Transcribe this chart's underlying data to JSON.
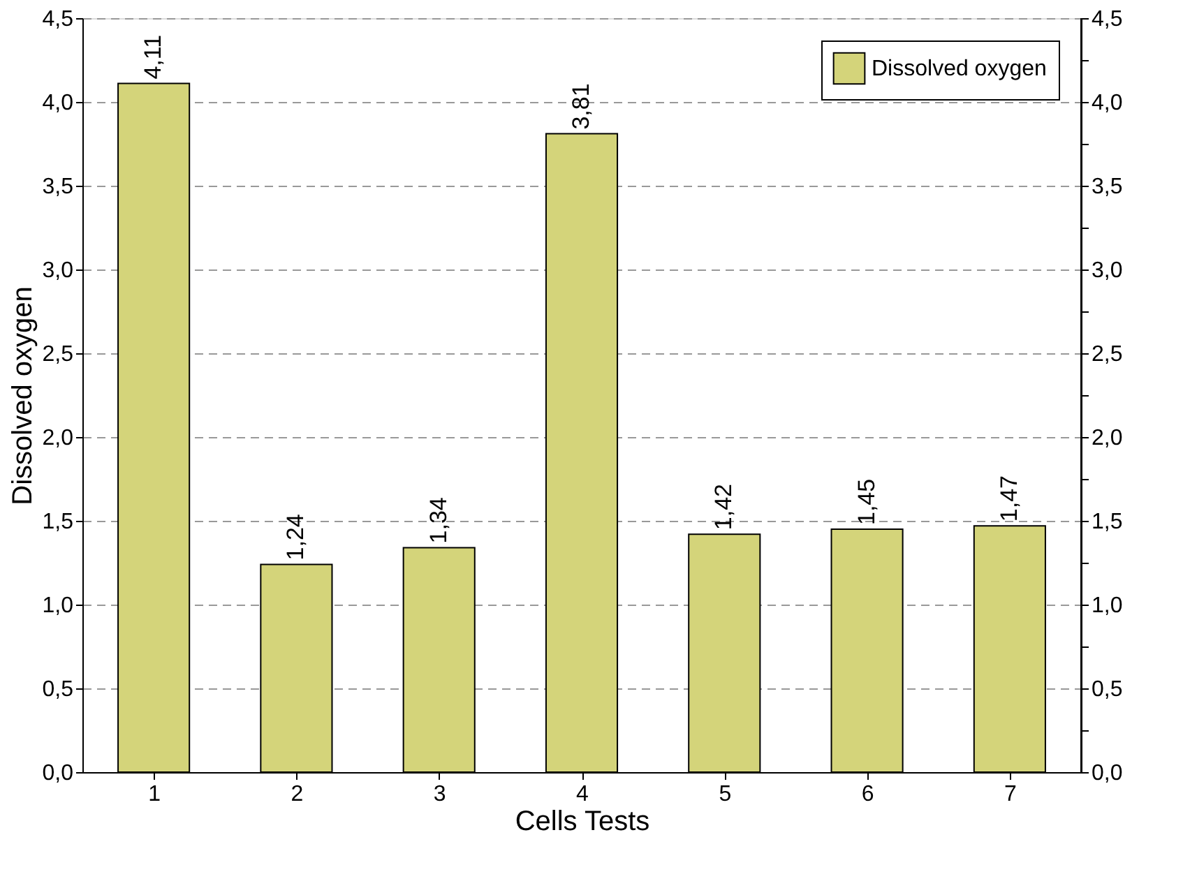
{
  "chart_data": {
    "type": "bar",
    "xlabel": "Cells Tests",
    "ylabel": "Dissolved oxygen",
    "categories": [
      "1",
      "2",
      "3",
      "4",
      "5",
      "6",
      "7"
    ],
    "series": [
      {
        "name": "Dissolved oxygen",
        "color": "#d4d47a",
        "values": [
          4.11,
          1.24,
          1.34,
          3.81,
          1.42,
          1.45,
          1.47
        ],
        "value_labels": [
          "4,11",
          "1,24",
          "1,34",
          "3,81",
          "1,42",
          "1,45",
          "1,47"
        ]
      }
    ],
    "ylim": [
      0,
      4.5
    ],
    "yticks": [
      {
        "value": 0,
        "label": "0,0"
      },
      {
        "value": 0.25,
        "label": null
      },
      {
        "value": 0.5,
        "label": "0,5"
      },
      {
        "value": 0.75,
        "label": null
      },
      {
        "value": 1,
        "label": "1,0"
      },
      {
        "value": 1.25,
        "label": null
      },
      {
        "value": 1.5,
        "label": "1,5"
      },
      {
        "value": 1.75,
        "label": null
      },
      {
        "value": 2,
        "label": "2,0"
      },
      {
        "value": 2.25,
        "label": null
      },
      {
        "value": 2.5,
        "label": "2,5"
      },
      {
        "value": 2.75,
        "label": null
      },
      {
        "value": 3,
        "label": "3,0"
      },
      {
        "value": 3.25,
        "label": null
      },
      {
        "value": 3.5,
        "label": "3,5"
      },
      {
        "value": 3.75,
        "label": null
      },
      {
        "value": 4,
        "label": "4,0"
      },
      {
        "value": 4.25,
        "label": null
      },
      {
        "value": 4.5,
        "label": "4,5"
      }
    ],
    "y2lim": [
      0,
      4.5
    ],
    "y2ticks": [
      {
        "value": 0,
        "label": "0,0"
      },
      {
        "value": 0.25,
        "label": null
      },
      {
        "value": 0.5,
        "label": "0,5"
      },
      {
        "value": 0.75,
        "label": null
      },
      {
        "value": 1,
        "label": "1,0"
      },
      {
        "value": 1.25,
        "label": null
      },
      {
        "value": 1.5,
        "label": "1,5"
      },
      {
        "value": 1.75,
        "label": null
      },
      {
        "value": 2,
        "label": "2,0"
      },
      {
        "value": 2.25,
        "label": null
      },
      {
        "value": 2.5,
        "label": "2,5"
      },
      {
        "value": 2.75,
        "label": null
      },
      {
        "value": 3,
        "label": "3,0"
      },
      {
        "value": 3.25,
        "label": null
      },
      {
        "value": 3.5,
        "label": "3,5"
      },
      {
        "value": 3.75,
        "label": null
      },
      {
        "value": 4,
        "label": "4,0"
      },
      {
        "value": 4.25,
        "label": null
      },
      {
        "value": 4.5,
        "label": "4,5"
      }
    ],
    "grid": "y",
    "legend": "top right"
  }
}
